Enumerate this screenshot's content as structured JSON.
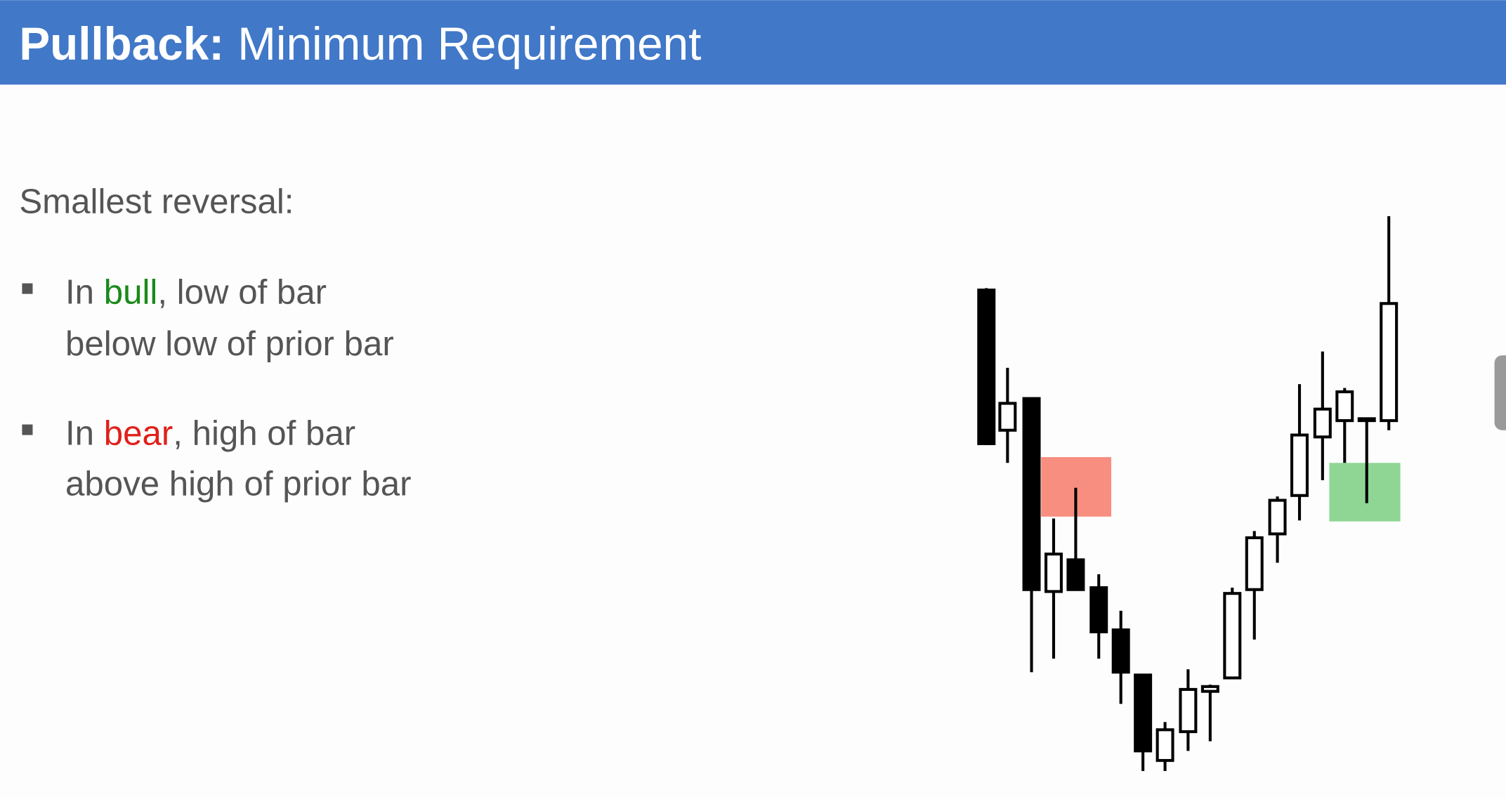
{
  "header": {
    "title_bold": "Pullback:",
    "title_rest": "Minimum Requirement"
  },
  "body": {
    "heading": "Smallest reversal:",
    "bullets": [
      {
        "line1": [
          "In ",
          "bull",
          ", low of bar"
        ],
        "line2": "below low of prior bar"
      },
      {
        "line1": [
          "In ",
          "bear",
          ", high of bar"
        ],
        "line2": "above high of prior bar"
      }
    ]
  }
}
